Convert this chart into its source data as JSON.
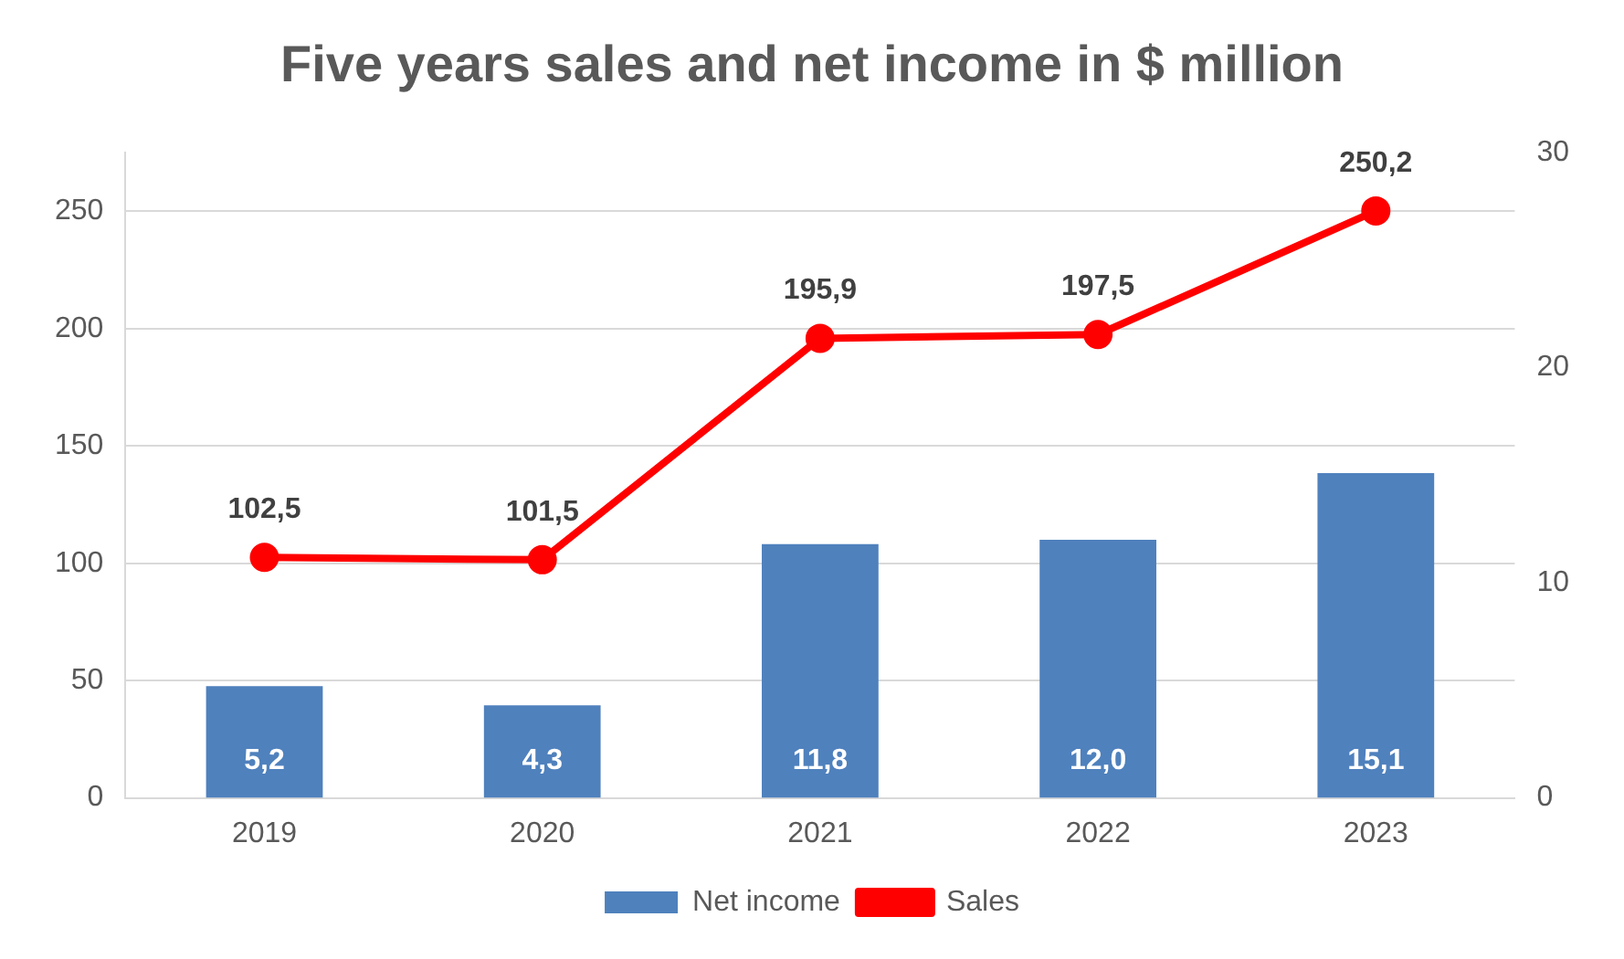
{
  "chart_data": {
    "type": "bar",
    "title": "Five years sales and net income in $ million",
    "categories": [
      "2019",
      "2020",
      "2021",
      "2022",
      "2023"
    ],
    "series": [
      {
        "name": "Net income",
        "axis": "y2",
        "color": "#4f81bd",
        "values": [
          5.2,
          4.3,
          11.8,
          12.0,
          15.1
        ],
        "value_labels": [
          "5,2",
          "4,3",
          "11,8",
          "12,0",
          "15,1"
        ]
      },
      {
        "name": "Sales",
        "type": "line",
        "color": "#ff0000",
        "marker": "circle",
        "values": [
          102.5,
          101.5,
          195.9,
          197.5,
          250.2
        ],
        "value_labels": [
          "102,5",
          "101,5",
          "195,9",
          "197,5",
          "250,2"
        ]
      }
    ],
    "ylim": [
      0,
      275
    ],
    "yticks": [
      0,
      50,
      100,
      150,
      200,
      250
    ],
    "y2lim": [
      0,
      30
    ],
    "y2ticks": [
      0,
      10,
      20,
      30
    ],
    "grid": "y",
    "legend": "bottom"
  }
}
